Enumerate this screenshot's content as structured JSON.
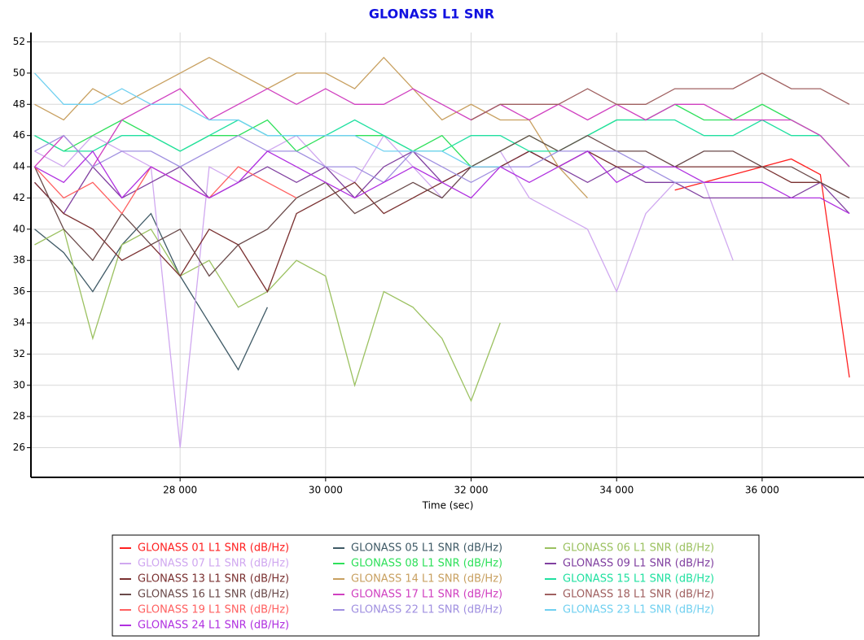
{
  "chart_data": {
    "type": "line",
    "title": "GLONASS L1 SNR",
    "x_label": "Time (sec)",
    "x": [
      26000,
      26400,
      26800,
      27200,
      27600,
      28000,
      28400,
      28800,
      29200,
      29600,
      30000,
      30400,
      30800,
      31200,
      31600,
      32000,
      32400,
      32800,
      33200,
      33600,
      34000,
      34400,
      34800,
      35200,
      35600,
      36000,
      36400,
      36800,
      37200
    ],
    "xlim": [
      25950,
      37400
    ],
    "ylim": [
      24.1,
      52.6
    ],
    "xticks": [
      {
        "value": 28000,
        "label": "28 000"
      },
      {
        "value": 30000,
        "label": "30 000"
      },
      {
        "value": 32000,
        "label": "32 000"
      },
      {
        "value": 34000,
        "label": "34 000"
      },
      {
        "value": 36000,
        "label": "36 000"
      }
    ],
    "yticks": [
      26,
      28,
      30,
      32,
      34,
      36,
      38,
      40,
      42,
      44,
      46,
      48,
      50,
      52
    ],
    "grid": true,
    "series": [
      {
        "name": "GLONASS 01 L1 SNR (dB/Hz)",
        "color": "#ff2020",
        "values": [
          null,
          null,
          null,
          null,
          null,
          null,
          null,
          null,
          null,
          null,
          null,
          null,
          null,
          null,
          null,
          null,
          null,
          null,
          null,
          null,
          null,
          null,
          42.5,
          43,
          43.5,
          44,
          44.5,
          43.5,
          30.5
        ]
      },
      {
        "name": "GLONASS 05 L1 SNR (dB/Hz)",
        "color": "#3f5a66",
        "values": [
          40,
          38.5,
          36,
          39,
          41,
          37,
          34,
          31,
          35,
          null,
          null,
          null,
          null,
          null,
          null,
          null,
          null,
          null,
          null,
          null,
          null,
          null,
          null,
          null,
          null,
          null,
          null,
          null,
          null
        ]
      },
      {
        "name": "GLONASS 06 L1 SNR (dB/Hz)",
        "color": "#9bc160",
        "values": [
          39,
          40,
          33,
          39,
          40,
          37,
          38,
          35,
          36,
          38,
          37,
          30,
          36,
          35,
          33,
          29,
          34,
          null,
          null,
          null,
          null,
          null,
          null,
          null,
          null,
          null,
          null,
          null,
          null
        ]
      },
      {
        "name": "GLONASS 07 L1 SNR (dB/Hz)",
        "color": "#d0a8f0",
        "values": [
          45,
          44,
          46,
          45,
          44,
          26,
          44,
          43,
          45,
          46,
          44,
          43,
          46,
          44,
          42,
          44,
          45,
          42,
          41,
          40,
          36,
          41,
          43,
          43,
          38,
          null,
          null,
          null,
          null
        ]
      },
      {
        "name": "GLONASS 08 L1 SNR (dB/Hz)",
        "color": "#2ee05a",
        "values": [
          46,
          45,
          46,
          47,
          46,
          45,
          46,
          46,
          47,
          45,
          46,
          46,
          46,
          45,
          46,
          44,
          45,
          46,
          45,
          46,
          47,
          47,
          48,
          47,
          47,
          48,
          47,
          46,
          44
        ]
      },
      {
        "name": "GLONASS 09 L1 SNR (dB/Hz)",
        "color": "#8040a0",
        "values": [
          43,
          41,
          44,
          42,
          43,
          44,
          42,
          43,
          44,
          43,
          44,
          42,
          44,
          45,
          43,
          44,
          44,
          45,
          44,
          43,
          44,
          43,
          43,
          42,
          42,
          42,
          42,
          43,
          41
        ]
      },
      {
        "name": "GLONASS 13 L1 SNR (dB/Hz)",
        "color": "#7a3030",
        "values": [
          43,
          41,
          40,
          38,
          39,
          37,
          40,
          39,
          36,
          41,
          42,
          43,
          41,
          42,
          43,
          44,
          44,
          45,
          44,
          45,
          44,
          44,
          44,
          44,
          44,
          44,
          43,
          43,
          42
        ]
      },
      {
        "name": "GLONASS 14 L1 SNR (dB/Hz)",
        "color": "#c8a060",
        "values": [
          48,
          47,
          49,
          48,
          49,
          50,
          51,
          50,
          49,
          50,
          50,
          49,
          51,
          49,
          47,
          48,
          47,
          47,
          44,
          42,
          null,
          null,
          null,
          null,
          null,
          null,
          null,
          null,
          null
        ]
      },
      {
        "name": "GLONASS 15 L1 SNR (dB/Hz)",
        "color": "#20e0a0",
        "values": [
          46,
          45,
          45,
          46,
          46,
          45,
          46,
          47,
          46,
          46,
          46,
          47,
          46,
          45,
          45,
          46,
          46,
          45,
          45,
          46,
          47,
          47,
          47,
          46,
          46,
          47,
          46,
          46,
          44
        ]
      },
      {
        "name": "GLONASS 16 L1 SNR (dB/Hz)",
        "color": "#6a4a4a",
        "values": [
          44,
          40,
          38,
          41,
          39,
          40,
          37,
          39,
          40,
          42,
          43,
          41,
          42,
          43,
          42,
          44,
          45,
          46,
          45,
          46,
          45,
          45,
          44,
          45,
          45,
          44,
          44,
          43,
          42
        ]
      },
      {
        "name": "GLONASS 17 L1 SNR (dB/Hz)",
        "color": "#d040c0",
        "values": [
          44,
          46,
          44,
          47,
          48,
          49,
          47,
          48,
          49,
          48,
          49,
          48,
          48,
          49,
          48,
          47,
          48,
          47,
          48,
          47,
          48,
          47,
          48,
          48,
          47,
          47,
          47,
          46,
          44
        ]
      },
      {
        "name": "GLONASS 18 L1 SNR (dB/Hz)",
        "color": "#a06060",
        "values": [
          null,
          null,
          null,
          null,
          null,
          null,
          null,
          null,
          null,
          null,
          null,
          null,
          null,
          null,
          null,
          47,
          48,
          48,
          48,
          49,
          48,
          48,
          49,
          49,
          49,
          50,
          49,
          49,
          48
        ]
      },
      {
        "name": "GLONASS 19 L1 SNR (dB/Hz)",
        "color": "#ff6060",
        "values": [
          44,
          42,
          43,
          41,
          44,
          43,
          42,
          44,
          43,
          42,
          null,
          null,
          null,
          null,
          null,
          null,
          null,
          null,
          null,
          null,
          null,
          null,
          null,
          null,
          null,
          null,
          null,
          null,
          null
        ]
      },
      {
        "name": "GLONASS 22 L1 SNR (dB/Hz)",
        "color": "#a090e0",
        "values": [
          45,
          46,
          44,
          45,
          45,
          44,
          45,
          46,
          45,
          45,
          44,
          44,
          43,
          45,
          44,
          43,
          44,
          44,
          45,
          45,
          45,
          44,
          43,
          43,
          null,
          null,
          null,
          null,
          null
        ]
      },
      {
        "name": "GLONASS 23 L1 SNR (dB/Hz)",
        "color": "#70d0f0",
        "values": [
          50,
          48,
          48,
          49,
          48,
          48,
          47,
          47,
          46,
          46,
          46,
          46,
          45,
          45,
          45,
          44,
          44,
          null,
          null,
          null,
          null,
          null,
          null,
          null,
          null,
          null,
          null,
          null,
          null
        ]
      },
      {
        "name": "GLONASS 24 L1 SNR (dB/Hz)",
        "color": "#b030e0",
        "values": [
          44,
          43,
          45,
          42,
          44,
          43,
          42,
          43,
          45,
          44,
          43,
          42,
          43,
          44,
          43,
          42,
          44,
          43,
          44,
          45,
          43,
          44,
          44,
          43,
          43,
          43,
          42,
          42,
          41
        ]
      }
    ]
  }
}
